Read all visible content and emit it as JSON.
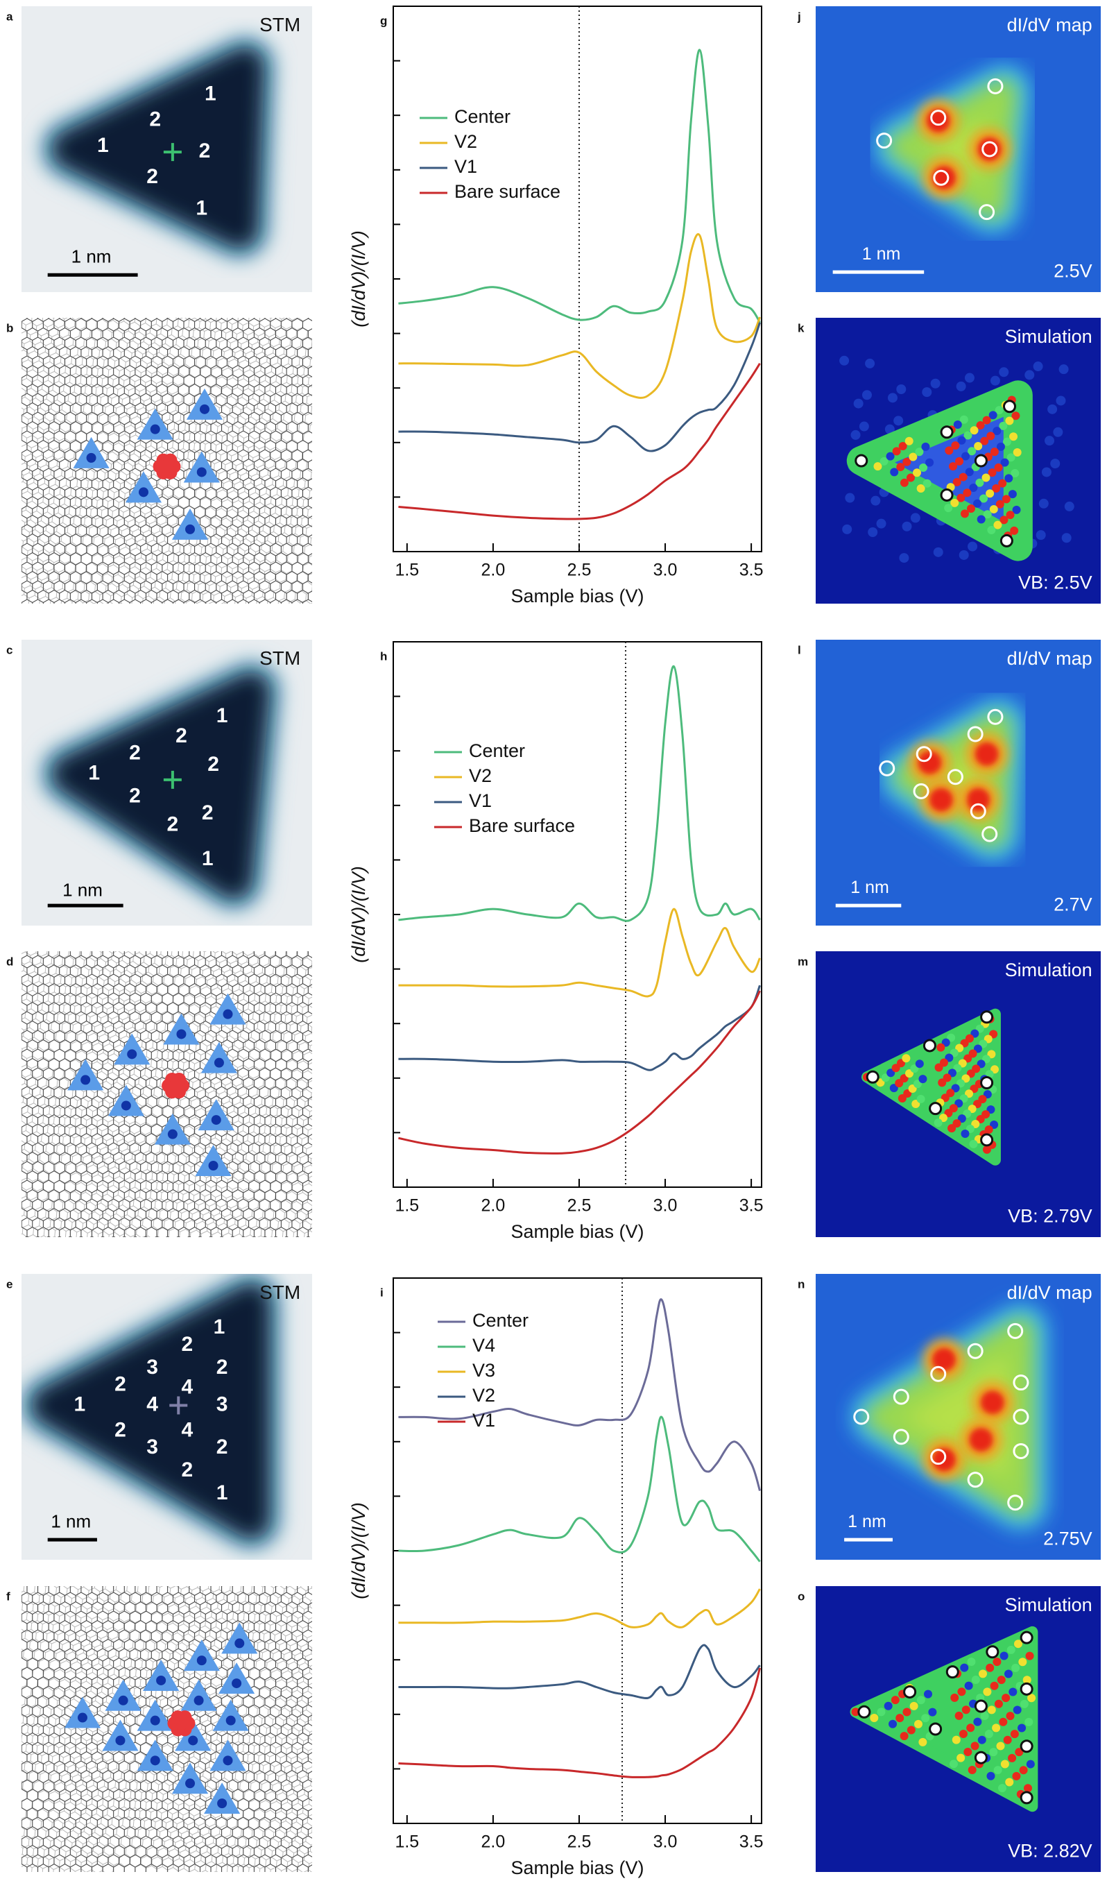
{
  "panels": [
    {
      "label": "a",
      "type": "stm",
      "title": "STM",
      "numbers": [
        "1",
        "2",
        "1",
        "2",
        "2",
        "1"
      ],
      "scale": "1 nm"
    },
    {
      "label": "b",
      "type": "model"
    },
    {
      "label": "c",
      "type": "stm",
      "title": "STM",
      "numbers": [
        "1",
        "2",
        "2",
        "2",
        "1",
        "2",
        "2",
        "2",
        "1"
      ],
      "scale": "1 nm"
    },
    {
      "label": "d",
      "type": "model"
    },
    {
      "label": "e",
      "type": "stm",
      "title": "STM",
      "numbers": [
        "1",
        "2",
        "3",
        "2",
        "2",
        "4",
        "1",
        "4",
        "3",
        "2",
        "4",
        "3",
        "2",
        "2",
        "1"
      ],
      "scale": "1 nm"
    },
    {
      "label": "f",
      "type": "model"
    },
    {
      "label": "j",
      "type": "map",
      "title": "dI/dV map",
      "scale": "1 nm",
      "bias": "2.5V"
    },
    {
      "label": "k",
      "type": "simulation",
      "title": "Simulation",
      "bias": "VB: 2.5V"
    },
    {
      "label": "l",
      "type": "map",
      "title": "dI/dV map",
      "scale": "1 nm",
      "bias": "2.7V"
    },
    {
      "label": "m",
      "type": "simulation",
      "title": "Simulation",
      "bias": "VB: 2.79V"
    },
    {
      "label": "n",
      "type": "map",
      "title": "dI/dV map",
      "scale": "1 nm",
      "bias": "2.75V"
    },
    {
      "label": "o",
      "type": "simulation",
      "title": "Simulation",
      "bias": "VB: 2.82V"
    }
  ],
  "chart_data": [
    {
      "type": "line",
      "panel_label": "g",
      "xlabel": "Sample bias (V)",
      "ylabel": "(dI/dV)/(I/V)",
      "xlim": [
        1.42,
        3.56
      ],
      "xticks": [
        1.5,
        {
          "value": 2,
          "label": "2.0"
        },
        2.5,
        {
          "value": 3,
          "label": "3.0"
        },
        3.5
      ],
      "ylim": [
        0,
        10
      ],
      "yticks": [
        1,
        2,
        3,
        4,
        5,
        6,
        7,
        8,
        9
      ],
      "marker_x": 2.5,
      "legend": "upper left",
      "x": [
        1.45,
        1.6,
        1.8,
        2.0,
        2.2,
        2.4,
        2.5,
        2.6,
        2.7,
        2.8,
        2.9,
        3.0,
        3.1,
        3.15,
        3.2,
        3.25,
        3.3,
        3.4,
        3.5,
        3.55
      ],
      "series": [
        {
          "name": "Center",
          "color": "#4dbb7c",
          "values": [
            4.55,
            4.6,
            4.7,
            4.85,
            4.65,
            4.35,
            4.25,
            4.3,
            4.5,
            4.38,
            4.4,
            4.6,
            5.7,
            7.9,
            9.2,
            7.8,
            5.7,
            4.65,
            4.45,
            4.2
          ]
        },
        {
          "name": "V2",
          "color": "#e9b824",
          "values": [
            3.45,
            3.45,
            3.44,
            3.43,
            3.42,
            3.6,
            3.65,
            3.3,
            3.05,
            2.86,
            2.86,
            3.3,
            4.6,
            5.5,
            5.8,
            5.0,
            4.1,
            3.85,
            3.95,
            4.3
          ]
        },
        {
          "name": "V1",
          "color": "#3b5a80",
          "values": [
            2.2,
            2.2,
            2.18,
            2.15,
            2.1,
            2.05,
            2.0,
            2.05,
            2.3,
            2.1,
            1.85,
            1.95,
            2.3,
            2.45,
            2.55,
            2.6,
            2.65,
            3.05,
            3.75,
            4.2
          ]
        },
        {
          "name": "Bare surface",
          "color": "#c8282a",
          "values": [
            0.82,
            0.78,
            0.72,
            0.66,
            0.62,
            0.6,
            0.6,
            0.62,
            0.7,
            0.85,
            1.05,
            1.3,
            1.5,
            1.65,
            1.85,
            2.05,
            2.3,
            2.75,
            3.2,
            3.45
          ]
        }
      ]
    },
    {
      "type": "line",
      "panel_label": "h",
      "xlabel": "Sample bias (V)",
      "ylabel": "(dI/dV)/(I/V)",
      "xlim": [
        1.42,
        3.56
      ],
      "xticks": [
        1.5,
        {
          "value": 2,
          "label": "2.0"
        },
        2.5,
        {
          "value": 3,
          "label": "3.0"
        },
        3.5
      ],
      "ylim": [
        0,
        10
      ],
      "yticks": [
        1,
        2,
        3,
        4,
        5,
        6,
        7,
        8,
        9
      ],
      "marker_x": 2.77,
      "legend": "upper left",
      "x": [
        1.45,
        1.6,
        1.8,
        2.0,
        2.2,
        2.4,
        2.5,
        2.6,
        2.7,
        2.8,
        2.9,
        2.95,
        3.0,
        3.05,
        3.1,
        3.15,
        3.2,
        3.3,
        3.35,
        3.4,
        3.5,
        3.55
      ],
      "series": [
        {
          "name": "Center",
          "color": "#4dbb7c",
          "values": [
            4.9,
            4.95,
            5.0,
            5.1,
            5.0,
            4.95,
            5.2,
            4.95,
            4.95,
            4.9,
            5.3,
            6.5,
            8.5,
            9.55,
            8.3,
            6.0,
            5.1,
            5.0,
            5.2,
            5.0,
            5.1,
            4.9
          ]
        },
        {
          "name": "V2",
          "color": "#e9b824",
          "values": [
            3.7,
            3.7,
            3.7,
            3.68,
            3.68,
            3.7,
            3.75,
            3.7,
            3.65,
            3.6,
            3.5,
            3.7,
            4.5,
            5.1,
            4.6,
            4.1,
            3.9,
            4.5,
            4.75,
            4.4,
            3.95,
            4.2
          ]
        },
        {
          "name": "V1",
          "color": "#3b5a80",
          "values": [
            2.35,
            2.35,
            2.33,
            2.3,
            2.3,
            2.33,
            2.3,
            2.3,
            2.3,
            2.28,
            2.15,
            2.2,
            2.3,
            2.45,
            2.35,
            2.4,
            2.55,
            2.8,
            2.95,
            3.05,
            3.3,
            3.7
          ]
        },
        {
          "name": "Bare surface",
          "color": "#c8282a",
          "values": [
            0.9,
            0.8,
            0.72,
            0.68,
            0.63,
            0.62,
            0.65,
            0.72,
            0.85,
            1.05,
            1.3,
            1.45,
            1.6,
            1.75,
            1.9,
            2.05,
            2.2,
            2.55,
            2.75,
            2.95,
            3.3,
            3.6
          ]
        }
      ]
    },
    {
      "type": "line",
      "panel_label": "i",
      "xlabel": "Sample bias (V)",
      "ylabel": "(dI/dV)/(I/V)",
      "xlim": [
        1.42,
        3.56
      ],
      "xticks": [
        1.5,
        {
          "value": 2,
          "label": "2.0"
        },
        2.5,
        {
          "value": 3,
          "label": "3.0"
        },
        3.5
      ],
      "ylim": [
        0,
        10
      ],
      "yticks": [
        1,
        2,
        3,
        4,
        5,
        6,
        7,
        8,
        9
      ],
      "marker_x": 2.75,
      "legend": "upper left",
      "x": [
        1.45,
        1.6,
        1.8,
        2.0,
        2.1,
        2.2,
        2.4,
        2.5,
        2.6,
        2.7,
        2.8,
        2.9,
        2.95,
        2.98,
        3.02,
        3.1,
        3.2,
        3.25,
        3.3,
        3.4,
        3.5,
        3.55
      ],
      "series": [
        {
          "name": "Center",
          "color": "#6b6b98",
          "values": [
            7.45,
            7.45,
            7.42,
            7.55,
            7.6,
            7.5,
            7.35,
            7.3,
            7.4,
            7.4,
            7.5,
            8.3,
            9.3,
            9.6,
            9.0,
            7.3,
            6.6,
            6.45,
            6.6,
            7.0,
            6.6,
            6.1
          ]
        },
        {
          "name": "V4",
          "color": "#4dbb7c",
          "values": [
            5.0,
            5.0,
            5.1,
            5.3,
            5.38,
            5.3,
            5.25,
            5.6,
            5.35,
            5.0,
            5.1,
            6.0,
            7.1,
            7.45,
            6.9,
            5.5,
            5.9,
            5.8,
            5.4,
            5.35,
            5.0,
            4.8
          ]
        },
        {
          "name": "V3",
          "color": "#e9b824",
          "values": [
            3.68,
            3.68,
            3.68,
            3.7,
            3.7,
            3.7,
            3.72,
            3.78,
            3.85,
            3.75,
            3.6,
            3.65,
            3.8,
            3.85,
            3.7,
            3.6,
            3.85,
            3.9,
            3.65,
            3.8,
            4.05,
            4.3
          ]
        },
        {
          "name": "V2",
          "color": "#3b5a80",
          "values": [
            2.5,
            2.5,
            2.5,
            2.48,
            2.48,
            2.5,
            2.55,
            2.6,
            2.5,
            2.4,
            2.35,
            2.3,
            2.45,
            2.5,
            2.35,
            2.5,
            3.2,
            3.2,
            2.8,
            2.5,
            2.7,
            2.9
          ]
        },
        {
          "name": "V1",
          "color": "#c8282a",
          "values": [
            1.1,
            1.08,
            1.05,
            1.05,
            1.02,
            1.0,
            0.98,
            0.95,
            0.92,
            0.88,
            0.85,
            0.85,
            0.86,
            0.88,
            0.9,
            1.0,
            1.2,
            1.3,
            1.4,
            1.75,
            2.3,
            2.85
          ]
        }
      ]
    }
  ]
}
